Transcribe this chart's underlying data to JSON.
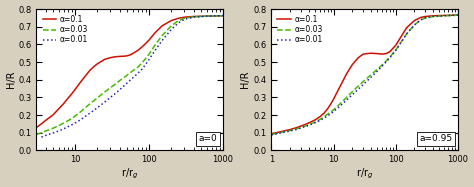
{
  "title_left": "a=0",
  "title_right": "a=0.95",
  "xlabel_left": "r/r$_g$",
  "xlabel_right": "r/r$_g$",
  "ylabel": "H/R",
  "xlim_left": [
    3,
    1000
  ],
  "xlim_right": [
    1,
    1000
  ],
  "ylim": [
    0,
    0.8
  ],
  "yticks": [
    0,
    0.1,
    0.2,
    0.3,
    0.4,
    0.5,
    0.6,
    0.7,
    0.8
  ],
  "legend_labels": [
    "α=0.1",
    "α=0.03",
    "α=0.01"
  ],
  "colors": [
    "#cc1100",
    "#44bb00",
    "#2222bb"
  ],
  "linestyles": [
    "-",
    "--",
    ":"
  ],
  "linewidths": [
    1.1,
    1.1,
    1.1
  ],
  "bg_color": "#d8d0be",
  "panel_bg": "#ffffff",
  "outer_bg": "#d8d0be"
}
